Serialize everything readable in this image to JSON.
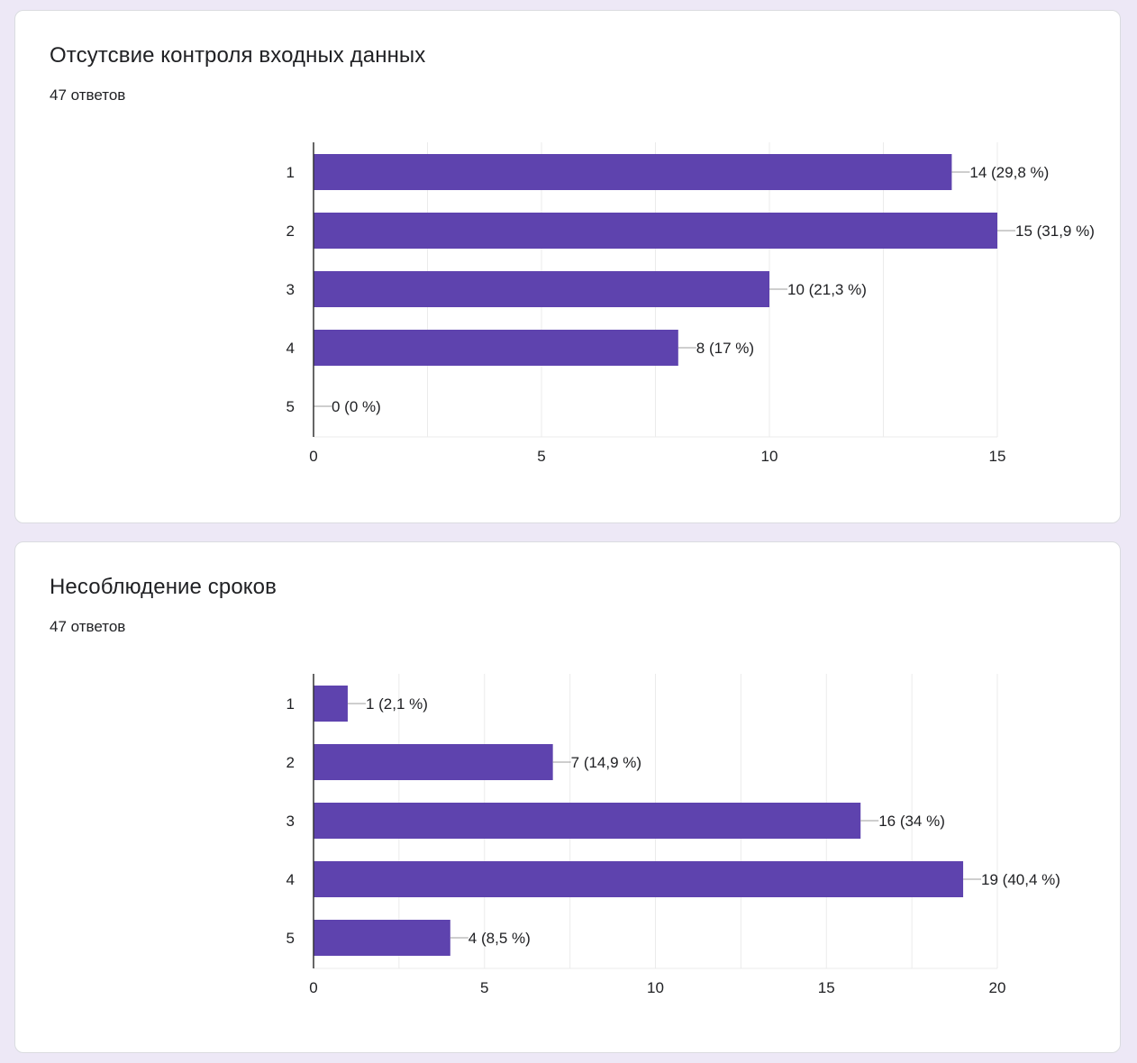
{
  "colors": {
    "background": "#ede8f6",
    "card": "#ffffff",
    "bar": "#5e43ae",
    "grid": "#ebebeb",
    "axis": "#333333",
    "text": "#202124"
  },
  "cards": [
    {
      "title": "Отсутсвие контроля входных данных",
      "count": "47 ответов"
    },
    {
      "title": "Несоблюдение сроков",
      "count": "47 ответов"
    }
  ],
  "chart_data": [
    {
      "type": "bar",
      "orientation": "horizontal",
      "title": "Отсутсвие контроля входных данных",
      "categories": [
        "1",
        "2",
        "3",
        "4",
        "5"
      ],
      "values": [
        14,
        15,
        10,
        8,
        0
      ],
      "data_labels": [
        "14 (29,8 %)",
        "15 (31,9 %)",
        "10 (21,3 %)",
        "8 (17 %)",
        "0 (0 %)"
      ],
      "xlim": [
        0,
        15
      ],
      "x_ticks": [
        0,
        5,
        10,
        15
      ],
      "grid": true,
      "legend": "none"
    },
    {
      "type": "bar",
      "orientation": "horizontal",
      "title": "Несоблюдение сроков",
      "categories": [
        "1",
        "2",
        "3",
        "4",
        "5"
      ],
      "values": [
        1,
        7,
        16,
        19,
        4
      ],
      "data_labels": [
        "1 (2,1 %)",
        "7 (14,9 %)",
        "16 (34 %)",
        "19 (40,4 %)",
        "4 (8,5 %)"
      ],
      "xlim": [
        0,
        20
      ],
      "x_ticks": [
        0,
        5,
        10,
        15,
        20
      ],
      "grid": true,
      "legend": "none"
    }
  ]
}
